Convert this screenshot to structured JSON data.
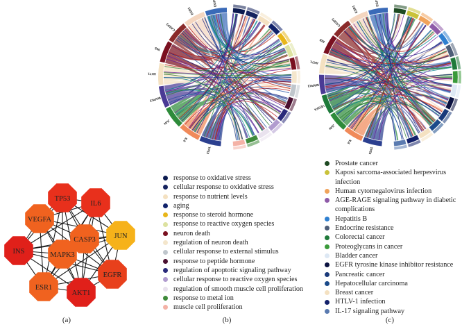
{
  "panel_labels": {
    "a": "(a)",
    "b": "(b)",
    "c": "(c)"
  },
  "network": {
    "nodes": [
      {
        "id": "TP53",
        "label": "TP53",
        "color": "#e8301c"
      },
      {
        "id": "IL6",
        "label": "IL6",
        "color": "#e8301c"
      },
      {
        "id": "VEGFA",
        "label": "VEGFA",
        "color": "#f0621f"
      },
      {
        "id": "JUN",
        "label": "JUN",
        "color": "#f6b21a"
      },
      {
        "id": "CASP3",
        "label": "CASP3",
        "color": "#f0621f"
      },
      {
        "id": "MAPK3",
        "label": "MAPK3",
        "color": "#f0621f"
      },
      {
        "id": "INS",
        "label": "INS",
        "color": "#e0201a"
      },
      {
        "id": "EGFR",
        "label": "EGFR",
        "color": "#e8401c"
      },
      {
        "id": "ESR1",
        "label": "ESR1",
        "color": "#f0621f"
      },
      {
        "id": "AKT1",
        "label": "AKT1",
        "color": "#e0201a"
      }
    ]
  },
  "chord_b": {
    "gene_labels": [
      "TP53",
      "IL6",
      "JUN",
      "MAPK3",
      "AKT1",
      "INS",
      "CASP3",
      "ESR1",
      "EGFR"
    ]
  },
  "chord_c": {
    "gene_labels": [
      "TP53",
      "IL6",
      "JUN",
      "VEGFA",
      "MAPK3",
      "AKT1",
      "INS",
      "CASP3",
      "ESR1",
      "EGFR"
    ]
  },
  "legend_b": [
    {
      "label": "response to oxidative stress",
      "color": "#0b1a4f"
    },
    {
      "label": "cellular response to oxidative stress",
      "color": "#15235f"
    },
    {
      "label": "response to nutrient levels",
      "color": "#f4e1c1"
    },
    {
      "label": "aging",
      "color": "#10226b"
    },
    {
      "label": "response to steroid hormone",
      "color": "#e8b61a"
    },
    {
      "label": "response to reactive oxygen species",
      "color": "#dde2a0"
    },
    {
      "label": "neuron death",
      "color": "#7a1020"
    },
    {
      "label": "regulation of neuron death",
      "color": "#f4e6cc"
    },
    {
      "label": "cellular response to external stimulus",
      "color": "#bfc6cc"
    },
    {
      "label": "response to peptide hormone",
      "color": "#4a1030"
    },
    {
      "label": "regulation of apoptotic signaling pathway",
      "color": "#2a2a7a"
    },
    {
      "label": "cellular response to reactive oxygen species",
      "color": "#b19ccf"
    },
    {
      "label": "regulation of smooth muscle cell proliferation",
      "color": "#e9e2ee"
    },
    {
      "label": "response to metal ion",
      "color": "#3f8a3a"
    },
    {
      "label": "muscle cell proliferation",
      "color": "#f4b2a6"
    }
  ],
  "legend_c": [
    {
      "label": "Prostate cancer",
      "color": "#1e4a22"
    },
    {
      "label": "Kaposi sarcoma-associated herpesvirus",
      "cont": "infection",
      "color": "#c9c23a"
    },
    {
      "label": "Human cytomegalovirus infection",
      "color": "#f0a35a"
    },
    {
      "label": "AGE-RAGE signaling pathway in diabetic",
      "cont": "complications",
      "color": "#8e5aa8"
    },
    {
      "label": "Hepatitis B",
      "color": "#2e7fd0"
    },
    {
      "label": "Endocrine resistance",
      "color": "#4e5e78"
    },
    {
      "label": "Colorectal cancer",
      "color": "#1f7a3a"
    },
    {
      "label": "Proteoglycans in cancer",
      "color": "#3a9a3a"
    },
    {
      "label": "Bladder cancer",
      "color": "#dde8f4"
    },
    {
      "label": "EGFR tyrosine kinase inhibitor resistance",
      "color": "#0b1240"
    },
    {
      "label": "Pancreatic cancer",
      "color": "#1a3a7a"
    },
    {
      "label": "Hepatocellular carcinoma",
      "color": "#1a4a8a"
    },
    {
      "label": "Breast cancer",
      "color": "#f4e1c1"
    },
    {
      "label": "HTLV-1 infection",
      "color": "#12206a"
    },
    {
      "label": "IL-17 signaling pathway",
      "color": "#5a7ab0"
    }
  ]
}
